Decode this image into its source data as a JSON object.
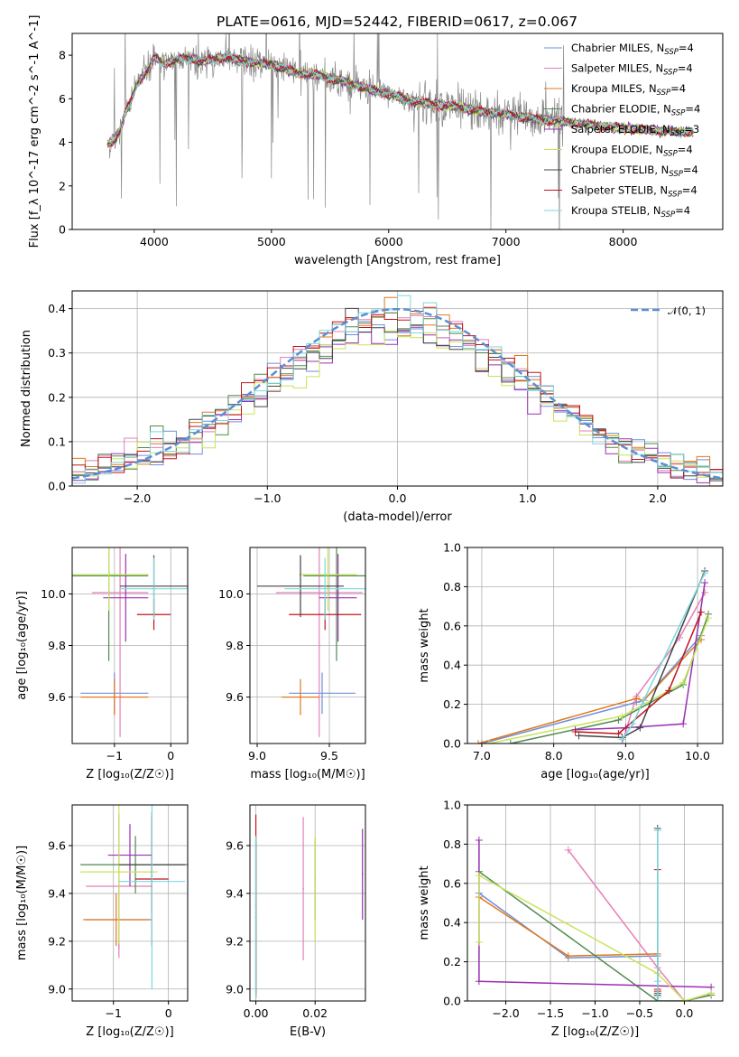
{
  "figure": {
    "title": "PLATE=0616, MJD=52442, FIBERID=0617, z=0.067"
  },
  "models": [
    {
      "name": "Chabrier MILES",
      "nssp": "4",
      "color": "#6f8fd8"
    },
    {
      "name": "Salpeter MILES",
      "nssp": "4",
      "color": "#e57fb8"
    },
    {
      "name": "Kroupa MILES",
      "nssp": "4",
      "color": "#e0791f"
    },
    {
      "name": "Chabrier ELODIE",
      "nssp": "4",
      "color": "#4f8a4f"
    },
    {
      "name": "Salpeter ELODIE",
      "nssp": "3",
      "color": "#9a30b0"
    },
    {
      "name": "Kroupa ELODIE",
      "nssp": "4",
      "color": "#c8e35a"
    },
    {
      "name": "Chabrier STELIB",
      "nssp": "4",
      "color": "#444444"
    },
    {
      "name": "Salpeter STELIB",
      "nssp": "4",
      "color": "#c0141c"
    },
    {
      "name": "Kroupa STELIB",
      "nssp": "4",
      "color": "#7ad8dc"
    }
  ],
  "chart_data": [
    {
      "id": "spectrum",
      "type": "line",
      "xlabel": "wavelength [Angstrom, rest frame]",
      "ylabel": "Flux [f_λ 10^-17 erg cm^-2 s^-1 A^-1]",
      "xlim": [
        3300,
        8850
      ],
      "ylim": [
        0,
        9
      ],
      "xticks": [
        4000,
        5000,
        6000,
        7000,
        8000
      ],
      "yticks": [
        0,
        2,
        4,
        6,
        8
      ],
      "grid": false,
      "legend": "right",
      "data_color": "#888888",
      "data_range": [
        3600,
        7500
      ],
      "continuum": {
        "x": [
          3600,
          3650,
          3700,
          3750,
          3800,
          3850,
          3900,
          3950,
          4000,
          4100,
          4200,
          4300,
          4400,
          4500,
          4600,
          4700,
          4800,
          4900,
          5000,
          5200,
          5400,
          5600,
          5800,
          6000,
          6200,
          6400,
          6600,
          6800,
          7000,
          7200,
          7400,
          7600,
          7800,
          8000,
          8200,
          8400,
          8600
        ],
        "y": [
          3.9,
          4.1,
          4.4,
          5.3,
          5.9,
          6.7,
          7.0,
          7.4,
          7.9,
          7.6,
          7.8,
          7.9,
          7.7,
          7.8,
          7.9,
          7.8,
          7.7,
          7.6,
          7.6,
          7.2,
          7.1,
          6.8,
          6.5,
          6.2,
          5.9,
          5.75,
          5.6,
          5.4,
          5.3,
          5.1,
          5.0,
          4.9,
          4.75,
          4.65,
          4.55,
          4.5,
          4.45
        ]
      }
    },
    {
      "id": "residuals",
      "type": "line",
      "xlabel": "(data-model)/error",
      "ylabel": "Normed distribution",
      "xlim": [
        -2.5,
        2.5
      ],
      "ylim": [
        0,
        0.44
      ],
      "xticks": [
        -2,
        -1,
        0,
        1,
        2
      ],
      "yticks": [
        0.0,
        0.1,
        0.2,
        0.3,
        0.4
      ],
      "grid": true,
      "legend": "top-right",
      "legend_label": "𝒩(0, 1)",
      "gaussian": {
        "mean": 0,
        "sigma": 1,
        "color": "#5b8ed6"
      },
      "bin_width": 0.1
    },
    {
      "id": "age-vs-Z",
      "type": "scatter",
      "xlabel": "Z [log₁₀(Z/Z☉)]",
      "ylabel": "age  [log₁₀(age/yr)]",
      "xlim": [
        -1.75,
        0.3
      ],
      "ylim": [
        9.42,
        10.18
      ],
      "xticks": [
        -1,
        0
      ],
      "yticks": [
        9.6,
        9.8,
        10.0
      ],
      "grid": true,
      "points": [
        {
          "model": 0,
          "x": -1.0,
          "y": 9.615,
          "xerr": 0.6,
          "yerr": 0.08
        },
        {
          "model": 1,
          "x": -0.9,
          "y": 10.005,
          "xerr": 0.5,
          "yerr": 0.56
        },
        {
          "model": 2,
          "x": -1.0,
          "y": 9.6,
          "xerr": 0.6,
          "yerr": 0.07
        },
        {
          "model": 3,
          "x": -1.1,
          "y": 10.07,
          "xerr": 0.7,
          "yerr": 0.33
        },
        {
          "model": 4,
          "x": -0.8,
          "y": 9.985,
          "xerr": 0.4,
          "yerr": 0.17
        },
        {
          "model": 5,
          "x": -1.1,
          "y": 10.075,
          "xerr": 0.7,
          "yerr": 0.14
        },
        {
          "model": 6,
          "x": -0.3,
          "y": 10.03,
          "xerr": 0.6,
          "yerr": 0.12
        },
        {
          "model": 7,
          "x": -0.3,
          "y": 9.92,
          "xerr": 0.3,
          "yerr": 0.06
        },
        {
          "model": 8,
          "x": -0.3,
          "y": 10.02,
          "xerr": 0.6,
          "yerr": 0.12
        }
      ]
    },
    {
      "id": "age-vs-mass",
      "type": "scatter",
      "xlabel": "mass [log₁₀(M/M☉)]",
      "ylabel": "",
      "xlim": [
        8.95,
        9.75
      ],
      "ylim": [
        9.42,
        10.18
      ],
      "xticks": [
        9.0,
        9.5
      ],
      "yticks": [
        9.6,
        9.8,
        10.0
      ],
      "grid": true,
      "points": [
        {
          "model": 0,
          "x": 9.45,
          "y": 9.615,
          "xerr": 0.23,
          "yerr": 0.08
        },
        {
          "model": 1,
          "x": 9.43,
          "y": 10.005,
          "xerr": 0.3,
          "yerr": 0.56
        },
        {
          "model": 2,
          "x": 9.3,
          "y": 9.6,
          "xerr": 0.13,
          "yerr": 0.07
        },
        {
          "model": 3,
          "x": 9.55,
          "y": 10.07,
          "xerr": 0.23,
          "yerr": 0.33
        },
        {
          "model": 4,
          "x": 9.56,
          "y": 9.985,
          "xerr": 0.13,
          "yerr": 0.17
        },
        {
          "model": 5,
          "x": 9.49,
          "y": 10.075,
          "xerr": 0.2,
          "yerr": 0.14
        },
        {
          "model": 6,
          "x": 9.3,
          "y": 10.03,
          "xerr": 0.3,
          "yerr": 0.12
        },
        {
          "model": 7,
          "x": 9.47,
          "y": 9.92,
          "xerr": 0.25,
          "yerr": 0.06
        },
        {
          "model": 8,
          "x": 9.47,
          "y": 10.02,
          "xerr": 0.28,
          "yerr": 0.12
        }
      ]
    },
    {
      "id": "weight-vs-age",
      "type": "line",
      "xlabel": "age  [log₁₀(age/yr)]",
      "ylabel": "mass weight",
      "xlim": [
        6.8,
        10.35
      ],
      "ylim": [
        0,
        1
      ],
      "xticks": [
        7,
        8,
        9,
        10
      ],
      "yticks": [
        0.0,
        0.2,
        0.4,
        0.6,
        0.8,
        1.0
      ],
      "grid": true,
      "series": [
        {
          "model": 0,
          "x": [
            7.0,
            9.15,
            9.25,
            10.05
          ],
          "y": [
            0.0,
            0.21,
            0.22,
            0.55
          ]
        },
        {
          "model": 1,
          "x": [
            8.95,
            9.15,
            9.75,
            10.1
          ],
          "y": [
            0.0,
            0.24,
            0.54,
            0.77
          ]
        },
        {
          "model": 2,
          "x": [
            6.95,
            9.15,
            9.25,
            10.05
          ],
          "y": [
            0.0,
            0.23,
            0.22,
            0.53
          ]
        },
        {
          "model": 3,
          "x": [
            7.4,
            8.9,
            9.8,
            10.15
          ],
          "y": [
            0.0,
            0.12,
            0.3,
            0.66
          ]
        },
        {
          "model": 4,
          "x": [
            8.3,
            9.0,
            9.8,
            10.1
          ],
          "y": [
            0.07,
            0.08,
            0.1,
            0.82
          ]
        },
        {
          "model": 5,
          "x": [
            7.1,
            8.95,
            9.8,
            10.15
          ],
          "y": [
            0.0,
            0.14,
            0.31,
            0.64
          ]
        },
        {
          "model": 6,
          "x": [
            8.35,
            8.95,
            9.2,
            10.1
          ],
          "y": [
            0.04,
            0.03,
            0.08,
            0.88
          ]
        },
        {
          "model": 7,
          "x": [
            8.3,
            8.9,
            9.6,
            10.05
          ],
          "y": [
            0.06,
            0.05,
            0.27,
            0.67
          ]
        },
        {
          "model": 8,
          "x": [
            8.95,
            9.1,
            9.25,
            10.1
          ],
          "y": [
            0.02,
            0.1,
            0.22,
            0.87
          ]
        }
      ]
    },
    {
      "id": "mass-vs-Z",
      "type": "scatter",
      "xlabel": "Z [log₁₀(Z/Z☉)]",
      "ylabel": "mass [log₁₀(M/M☉)]",
      "xlim": [
        -1.75,
        0.35
      ],
      "ylim": [
        8.95,
        9.77
      ],
      "xticks": [
        -1,
        0
      ],
      "yticks": [
        9.0,
        9.2,
        9.4,
        9.6
      ],
      "grid": true,
      "points": [
        {
          "model": 0,
          "x": -0.9,
          "y": 9.29,
          "xerr": 0.6,
          "yerr": 0.12
        },
        {
          "model": 1,
          "x": -0.9,
          "y": 9.43,
          "xerr": 0.6,
          "yerr": 0.3
        },
        {
          "model": 2,
          "x": -0.95,
          "y": 9.29,
          "xerr": 0.6,
          "yerr": 0.11
        },
        {
          "model": 3,
          "x": -0.6,
          "y": 9.52,
          "xerr": 1.0,
          "yerr": 0.12
        },
        {
          "model": 4,
          "x": -0.7,
          "y": 9.56,
          "xerr": 0.4,
          "yerr": 0.13
        },
        {
          "model": 5,
          "x": -0.9,
          "y": 9.49,
          "xerr": 0.7,
          "yerr": 0.3
        },
        {
          "model": 6,
          "x": -0.3,
          "y": 9.52,
          "xerr": 0.6,
          "yerr": 0.2
        },
        {
          "model": 7,
          "x": -0.3,
          "y": 9.46,
          "xerr": 0.3,
          "yerr": 0.28
        },
        {
          "model": 8,
          "x": -0.3,
          "y": 9.45,
          "xerr": 0.6,
          "yerr": 0.45
        }
      ]
    },
    {
      "id": "mass-vs-ebv",
      "type": "scatter",
      "xlabel": "E(B-V)",
      "ylabel": "",
      "xlim": [
        -0.002,
        0.037
      ],
      "ylim": [
        8.95,
        9.77
      ],
      "xticks": [
        0.0,
        0.02
      ],
      "yticks": [
        9.0,
        9.2,
        9.4,
        9.6
      ],
      "grid": true,
      "points": [
        {
          "model": 0,
          "x": 0.0,
          "y": 9.3,
          "xerr": 0,
          "yerr": 0.32
        },
        {
          "model": 1,
          "x": 0.016,
          "y": 9.42,
          "xerr": 0,
          "yerr": 0.3
        },
        {
          "model": 2,
          "x": 0.0,
          "y": 9.3,
          "xerr": 0,
          "yerr": 0.32
        },
        {
          "model": 3,
          "x": 0.02,
          "y": 9.46,
          "xerr": 0,
          "yerr": 0.17
        },
        {
          "model": 4,
          "x": 0.036,
          "y": 9.48,
          "xerr": 0,
          "yerr": 0.19
        },
        {
          "model": 5,
          "x": 0.02,
          "y": 9.42,
          "xerr": 0,
          "yerr": 0.22
        },
        {
          "model": 6,
          "x": 0.0,
          "y": 9.3,
          "xerr": 0,
          "yerr": 0.34
        },
        {
          "model": 7,
          "x": 0.0,
          "y": 9.35,
          "xerr": 0,
          "yerr": 0.38
        },
        {
          "model": 8,
          "x": 0.0,
          "y": 9.3,
          "xerr": 0,
          "yerr": 0.34
        }
      ]
    },
    {
      "id": "weight-vs-Z",
      "type": "line",
      "xlabel": "Z [log₁₀(Z/Z☉)]",
      "ylabel": "mass weight",
      "xlim": [
        -2.43,
        0.43
      ],
      "ylim": [
        0,
        1
      ],
      "xticks": [
        -2.0,
        -1.5,
        -1.0,
        -0.5,
        0.0
      ],
      "yticks": [
        0.0,
        0.2,
        0.4,
        0.6,
        0.8,
        1.0
      ],
      "grid": true,
      "series": [
        {
          "model": 0,
          "x": [
            -2.3,
            -1.3,
            -0.3,
            -0.3
          ],
          "y": [
            0.55,
            0.22,
            0.23,
            0.0
          ]
        },
        {
          "model": 1,
          "x": [
            -1.3,
            -0.3,
            0.0,
            0.3
          ],
          "y": [
            0.77,
            0.17,
            0.0,
            0.04
          ]
        },
        {
          "model": 2,
          "x": [
            -2.3,
            -1.3,
            -0.3,
            -0.3
          ],
          "y": [
            0.53,
            0.23,
            0.24,
            0.0
          ]
        },
        {
          "model": 3,
          "x": [
            -2.3,
            -0.3,
            0.0,
            0.3
          ],
          "y": [
            0.66,
            0.0,
            0.0,
            0.03
          ]
        },
        {
          "model": 4,
          "x": [
            -2.3,
            -2.3,
            0.3
          ],
          "y": [
            0.82,
            0.1,
            0.07
          ]
        },
        {
          "model": 5,
          "x": [
            -2.3,
            -2.3,
            -0.3,
            0.0,
            0.3
          ],
          "y": [
            0.3,
            0.64,
            0.14,
            0.0,
            0.04
          ]
        },
        {
          "model": 6,
          "x": [
            -0.3,
            -0.3,
            -0.3
          ],
          "y": [
            0.88,
            0.04,
            0.03
          ]
        },
        {
          "model": 7,
          "x": [
            -0.3,
            -0.3,
            -0.3
          ],
          "y": [
            0.67,
            0.06,
            0.05
          ]
        },
        {
          "model": 8,
          "x": [
            -0.3,
            -0.3,
            -0.3
          ],
          "y": [
            0.87,
            0.1,
            0.02
          ]
        }
      ]
    }
  ]
}
